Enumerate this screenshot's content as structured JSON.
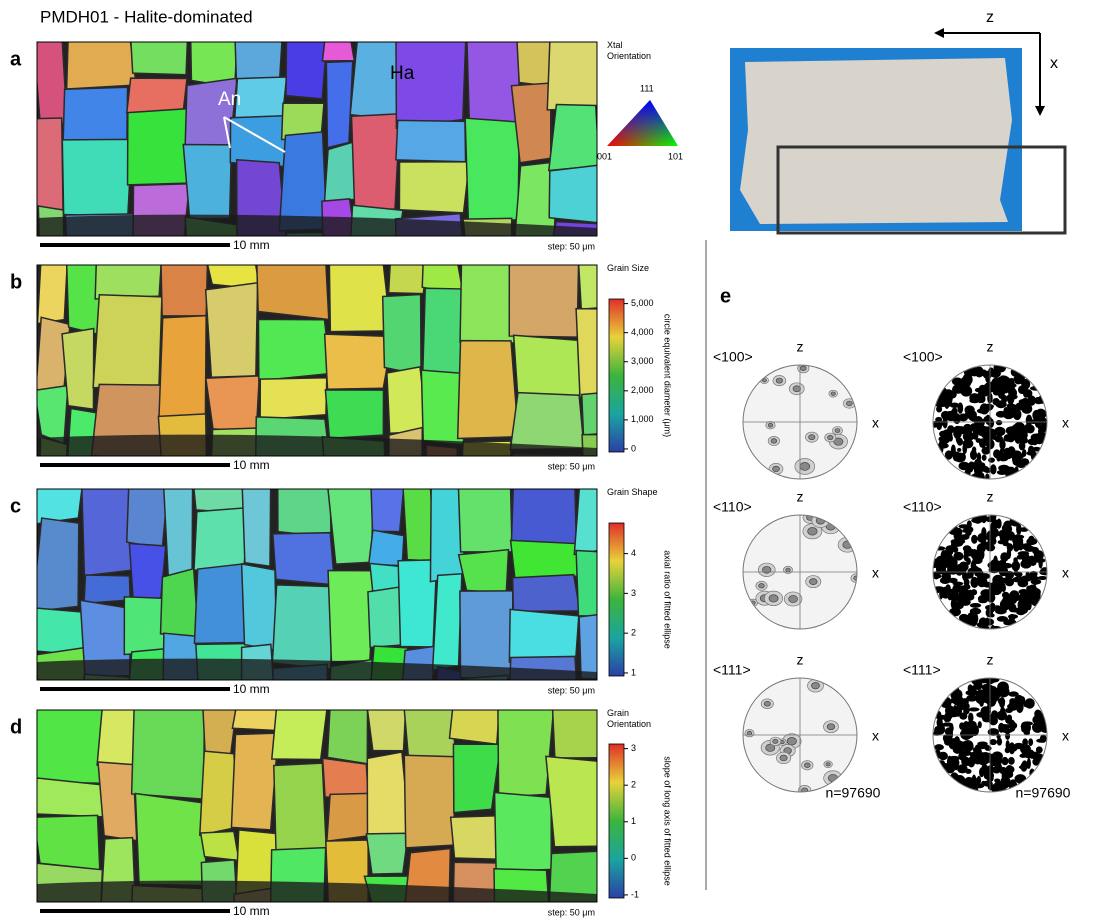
{
  "title": "PMDH01 - Halite-dominated",
  "panels": [
    {
      "letter": "a",
      "legend_title": "Xtal Orientation",
      "ipf_labels": [
        "111",
        "001",
        "101"
      ],
      "annotations": [
        "An",
        "Ha"
      ],
      "scale_bar": "10 mm",
      "step": "step: 50 μm"
    },
    {
      "letter": "b",
      "legend_title": "Grain Size",
      "colorbar_label": "circle equivalent diameter (μm)",
      "colorbar_ticks": [
        "5,000",
        "4,000",
        "3,000",
        "2,000",
        "1,000",
        "0"
      ],
      "scale_bar": "10 mm",
      "step": "step: 50 μm"
    },
    {
      "letter": "c",
      "legend_title": "Grain Shape",
      "colorbar_label": "axial ratio of fitted ellipse",
      "colorbar_ticks": [
        "4",
        "3",
        "2",
        "1"
      ],
      "scale_bar": "10 mm",
      "step": "step: 50 μm"
    },
    {
      "letter": "d",
      "legend_title": "Grain Orientation",
      "colorbar_label": "slope of long axis of fitted ellipse",
      "colorbar_ticks": [
        "3",
        "2",
        "1",
        "0",
        "-1"
      ],
      "scale_bar": "10 mm",
      "step": "step: 50 μm"
    }
  ],
  "sample": {
    "axes": [
      "z",
      "x"
    ]
  },
  "pole_figures": {
    "letter": "e",
    "columns": [
      {
        "figures": [
          {
            "label": "<100>",
            "top": "z",
            "right": "x"
          },
          {
            "label": "<110>",
            "top": "z",
            "right": "x"
          },
          {
            "label": "<111>",
            "top": "z",
            "right": "x"
          }
        ],
        "count": "n=97690"
      },
      {
        "figures": [
          {
            "label": "<100>",
            "top": "z",
            "right": "x"
          },
          {
            "label": "<110>",
            "top": "z",
            "right": "x"
          },
          {
            "label": "<111>",
            "top": "z",
            "right": "x"
          }
        ],
        "count": "n=97690"
      }
    ]
  }
}
